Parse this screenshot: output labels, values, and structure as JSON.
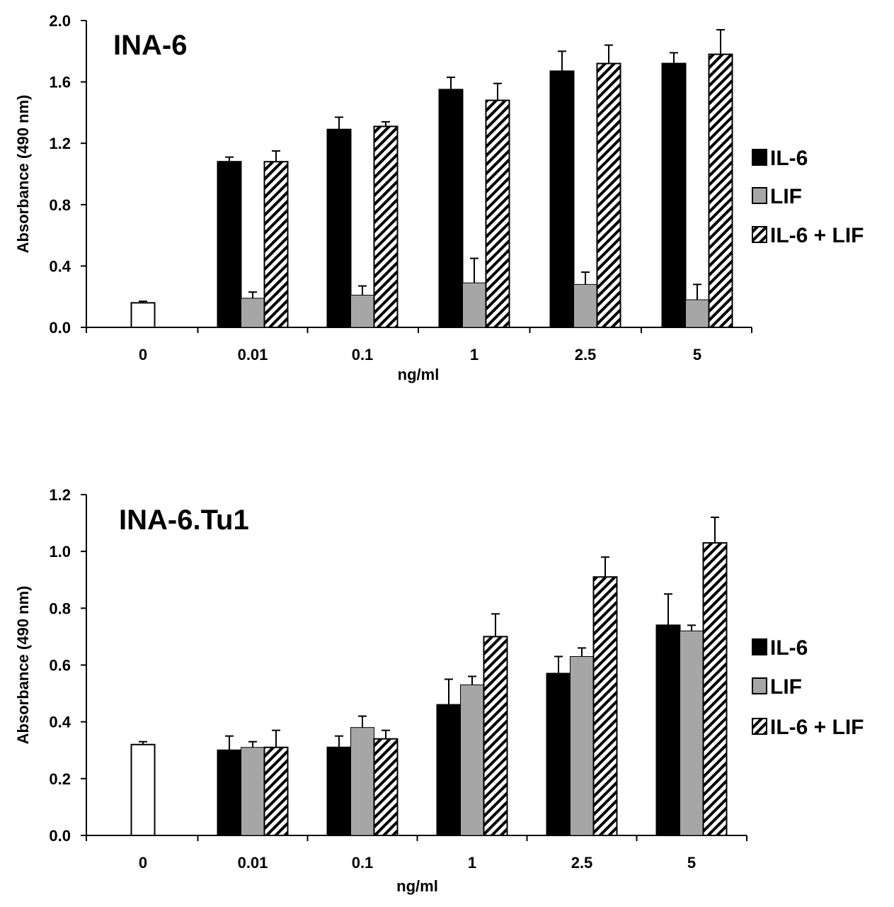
{
  "colors": {
    "il6": "#000000",
    "lif": "#a6a6a6",
    "control": "#ffffff",
    "stroke": "#000000"
  },
  "chart_data": [
    {
      "type": "bar",
      "title": "INA-6",
      "xlabel": "ng/ml",
      "ylabel": "Absorbance (490 nm)",
      "ylim": [
        0,
        2.0
      ],
      "yticks": [
        "0.0",
        "0.4",
        "0.8",
        "1.2",
        "1.6",
        "2.0"
      ],
      "categories": [
        "0",
        "0.01",
        "0.1",
        "1",
        "2.5",
        "5"
      ],
      "control": {
        "name": "0",
        "value": 0.16,
        "error": 0.01
      },
      "series": [
        {
          "name": "IL-6",
          "pattern": "solid-black",
          "values": [
            null,
            1.08,
            1.29,
            1.55,
            1.67,
            1.72
          ],
          "errors": [
            null,
            0.03,
            0.08,
            0.08,
            0.13,
            0.07
          ]
        },
        {
          "name": "LIF",
          "pattern": "solid-grey",
          "values": [
            null,
            0.19,
            0.21,
            0.29,
            0.28,
            0.18
          ],
          "errors": [
            null,
            0.04,
            0.06,
            0.16,
            0.08,
            0.1
          ]
        },
        {
          "name": "IL-6 + LIF",
          "pattern": "hatched",
          "values": [
            null,
            1.08,
            1.31,
            1.48,
            1.72,
            1.78
          ],
          "errors": [
            null,
            0.07,
            0.03,
            0.11,
            0.12,
            0.16
          ]
        }
      ],
      "legend": [
        "IL-6",
        "LIF",
        "IL-6 + LIF"
      ]
    },
    {
      "type": "bar",
      "title": "INA-6.Tu1",
      "xlabel": "ng/ml",
      "ylabel": "Absorbance (490 nm)",
      "ylim": [
        0,
        1.2
      ],
      "yticks": [
        "0.0",
        "0.2",
        "0.4",
        "0.6",
        "0.8",
        "1.0",
        "1.2"
      ],
      "categories": [
        "0",
        "0.01",
        "0.1",
        "1",
        "2.5",
        "5"
      ],
      "control": {
        "name": "0",
        "value": 0.32,
        "error": 0.01
      },
      "series": [
        {
          "name": "IL-6",
          "pattern": "solid-black",
          "values": [
            null,
            0.3,
            0.31,
            0.46,
            0.57,
            0.74
          ],
          "errors": [
            null,
            0.05,
            0.04,
            0.09,
            0.06,
            0.11
          ]
        },
        {
          "name": "LIF",
          "pattern": "solid-grey",
          "values": [
            null,
            0.31,
            0.38,
            0.53,
            0.63,
            0.72
          ],
          "errors": [
            null,
            0.02,
            0.04,
            0.03,
            0.03,
            0.02
          ]
        },
        {
          "name": "IL-6 + LIF",
          "pattern": "hatched",
          "values": [
            null,
            0.31,
            0.34,
            0.7,
            0.91,
            1.03
          ],
          "errors": [
            null,
            0.06,
            0.03,
            0.08,
            0.07,
            0.09
          ]
        }
      ],
      "legend": [
        "IL-6",
        "LIF",
        "IL-6 + LIF"
      ]
    }
  ]
}
